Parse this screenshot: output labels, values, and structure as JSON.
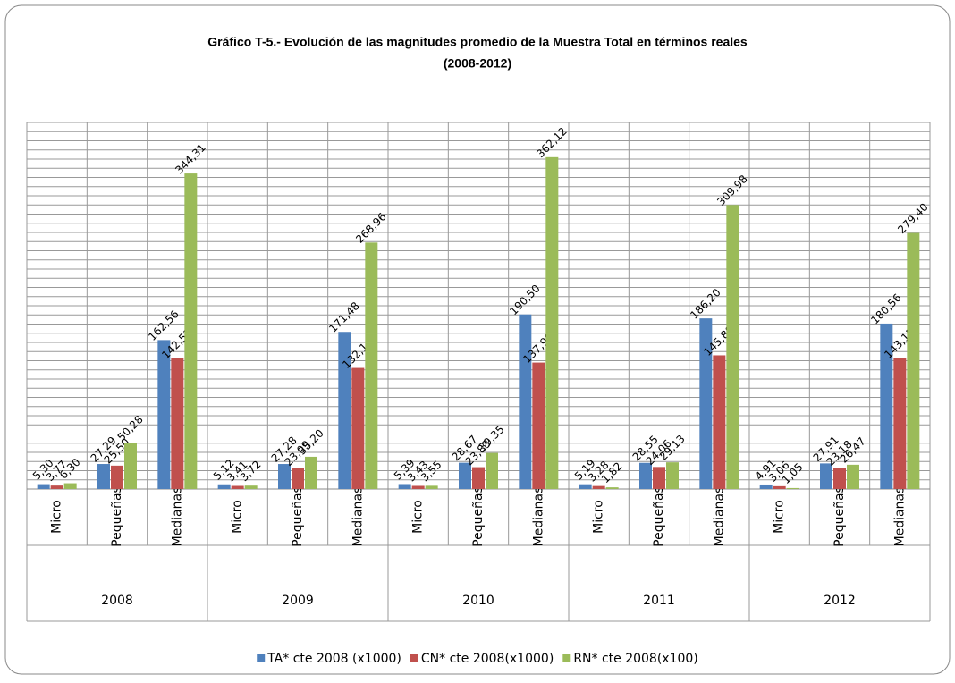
{
  "chart_data": {
    "type": "bar",
    "title": "Gráfico T-5.- Evolución de las magnitudes promedio de la Muestra Total en términos reales",
    "subtitle": "(2008-2012)",
    "groups": [
      {
        "name": "2008",
        "categories": [
          "Micro",
          "Pequeñas",
          "Medianas"
        ]
      },
      {
        "name": "2009",
        "categories": [
          "Micro",
          "Pequeñas",
          "Medianas"
        ]
      },
      {
        "name": "2010",
        "categories": [
          "Micro",
          "Pequeñas",
          "Medianas"
        ]
      },
      {
        "name": "2011",
        "categories": [
          "Micro",
          "Pequeñas",
          "Medianas"
        ]
      },
      {
        "name": "2012",
        "categories": [
          "Micro",
          "Pequeñas",
          "Medianas"
        ]
      }
    ],
    "series": [
      {
        "name": "TA* cte 2008 (x1000)",
        "color": "#4f81bd",
        "values": [
          5.3,
          27.29,
          162.56,
          5.12,
          27.28,
          171.48,
          5.39,
          28.67,
          190.5,
          5.19,
          28.55,
          186.2,
          4.91,
          27.91,
          180.56
        ],
        "value_labels": [
          "5,30",
          "27,29",
          "162,56",
          "5,12",
          "27,28",
          "171,48",
          "5,39",
          "28,67",
          "190,50",
          "5,19",
          "28,55",
          "186,20",
          "4,91",
          "27,91",
          "180,56"
        ]
      },
      {
        "name": "CN* cte 2008(x1000)",
        "color": "#c0504d",
        "values": [
          3.77,
          25.5,
          142.53,
          3.41,
          23.09,
          132.14,
          3.43,
          23.83,
          137.98,
          3.28,
          24.06,
          145.89,
          3.06,
          23.18,
          143.15
        ],
        "value_labels": [
          "3,77",
          "25,50",
          "142,53",
          "3,41",
          "23,09",
          "132,14",
          "3,43",
          "23,83",
          "137,98",
          "3,28",
          "24,06",
          "145,89",
          "3,06",
          "23,18",
          "143,15"
        ]
      },
      {
        "name": "RN* cte 2008(x100)",
        "color": "#9bbb59",
        "values": [
          6.3,
          50.28,
          344.31,
          3.72,
          35.2,
          268.96,
          3.55,
          39.35,
          362.12,
          1.82,
          29.13,
          309.98,
          1.05,
          26.47,
          279.4
        ],
        "value_labels": [
          "6,30",
          "50,28",
          "344,31",
          "3,72",
          "35,20",
          "268,96",
          "3,55",
          "39,35",
          "362,12",
          "1,82",
          "29,13",
          "309,98",
          "1,05",
          "26,47",
          "279,40"
        ]
      }
    ],
    "ylim": [
      0,
      400
    ],
    "yticks": [
      0,
      10,
      20,
      30,
      40,
      50,
      60,
      70,
      80,
      90,
      100,
      110,
      120,
      130,
      140,
      150,
      160,
      170,
      180,
      190,
      200,
      210,
      220,
      230,
      240,
      250,
      260,
      270,
      280,
      290,
      300,
      310,
      320,
      330,
      340,
      350,
      360,
      370,
      380,
      390,
      400
    ],
    "grid": true,
    "legend": "bottom"
  }
}
